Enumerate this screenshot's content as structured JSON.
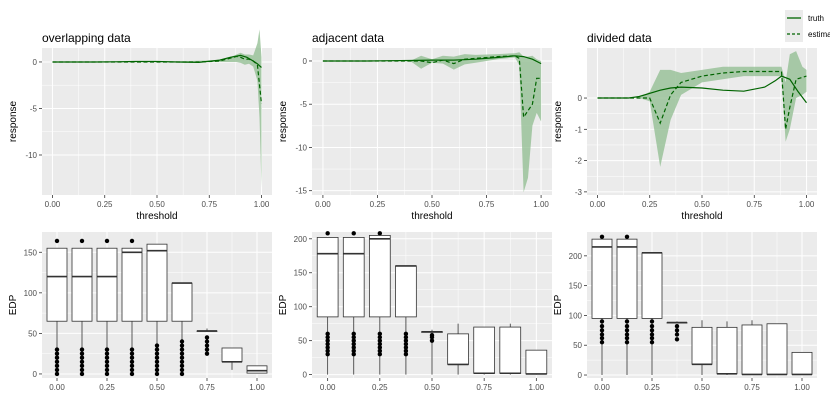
{
  "legend": {
    "truth": "truth",
    "estimate": "estimate"
  },
  "colors": {
    "panel": "#ebebeb",
    "grid": "#ffffff",
    "line": "#006400",
    "band": "#8fbc8f"
  },
  "chart_data": [
    {
      "type": "line",
      "title": "overlapping data",
      "xlabel": "threshold",
      "ylabel": "response",
      "xlim": [
        -0.05,
        1.05
      ],
      "ylim": [
        -14.3,
        1.5
      ],
      "xticks": [
        0,
        0.25,
        0.5,
        0.75,
        1
      ],
      "xtick_labels": [
        "0.00",
        "0.25",
        "0.50",
        "0.75",
        "1.00"
      ],
      "yticks": [
        0,
        -5,
        -10
      ],
      "ytick_labels": [
        "0",
        "-5",
        "-10"
      ],
      "truth": {
        "x": [
          0,
          0.1,
          0.2,
          0.3,
          0.4,
          0.5,
          0.6,
          0.7,
          0.8,
          0.85,
          0.9,
          0.93,
          0.96,
          0.98,
          1.0
        ],
        "y": [
          0,
          0,
          0,
          0.02,
          0.05,
          0.05,
          0.0,
          -0.05,
          0.2,
          0.5,
          0.7,
          0.5,
          0.1,
          -0.2,
          -0.6
        ]
      },
      "estimate": {
        "x": [
          0,
          0.1,
          0.2,
          0.3,
          0.4,
          0.5,
          0.6,
          0.7,
          0.8,
          0.85,
          0.88,
          0.9,
          0.92,
          0.94,
          0.96,
          0.98,
          1.0
        ],
        "y": [
          0,
          0,
          0,
          0,
          0,
          0,
          0,
          0,
          0.1,
          0.4,
          0.6,
          0.5,
          0.3,
          0.3,
          0.1,
          -0.3,
          -4.5
        ]
      },
      "band": {
        "x": [
          0,
          0.5,
          0.8,
          0.85,
          0.88,
          0.9,
          0.92,
          0.94,
          0.96,
          0.98,
          0.99,
          1.0
        ],
        "lo": [
          0,
          0,
          0,
          0,
          0,
          -0.1,
          -0.3,
          -0.2,
          -0.5,
          -2.0,
          -6,
          -13.5
        ],
        "hi": [
          0,
          0,
          0.2,
          0.5,
          0.8,
          1.0,
          0.8,
          0.8,
          0.7,
          2,
          3.5,
          0.5
        ]
      }
    },
    {
      "type": "line",
      "title": "adjacent data",
      "xlabel": "threshold",
      "ylabel": "response",
      "xlim": [
        -0.05,
        1.05
      ],
      "ylim": [
        -15.5,
        1.5
      ],
      "xticks": [
        0,
        0.25,
        0.5,
        0.75,
        1
      ],
      "xtick_labels": [
        "0.00",
        "0.25",
        "0.50",
        "0.75",
        "1.00"
      ],
      "yticks": [
        0,
        -5,
        -10,
        -15
      ],
      "ytick_labels": [
        "0",
        "-5",
        "-10",
        "-15"
      ],
      "truth": {
        "x": [
          0,
          0.2,
          0.4,
          0.5,
          0.6,
          0.7,
          0.8,
          0.88,
          0.92,
          0.96,
          1.0
        ],
        "y": [
          0,
          0,
          0.05,
          0.1,
          0.1,
          0.2,
          0.4,
          0.6,
          0.5,
          0.2,
          -0.3
        ]
      },
      "estimate": {
        "x": [
          0,
          0.3,
          0.45,
          0.5,
          0.55,
          0.6,
          0.65,
          0.7,
          0.8,
          0.88,
          0.9,
          0.92,
          0.96,
          0.98,
          1.0
        ],
        "y": [
          0,
          0,
          0,
          -0.2,
          0.1,
          -0.3,
          0.2,
          0.3,
          0.5,
          0.6,
          0.3,
          -6.5,
          -5,
          -2,
          -2
        ]
      },
      "band": {
        "x": [
          0,
          0.4,
          0.45,
          0.5,
          0.55,
          0.6,
          0.65,
          0.7,
          0.8,
          0.88,
          0.9,
          0.92,
          0.94,
          0.96,
          0.98,
          1.0
        ],
        "lo": [
          0,
          0,
          -0.9,
          -0.2,
          -0.3,
          -1.0,
          -0.4,
          -0.2,
          0.2,
          0.4,
          -0.5,
          -15.2,
          -13.5,
          -7.5,
          -6.0,
          -7.0
        ],
        "hi": [
          0,
          0,
          0.6,
          0.2,
          0.6,
          0.5,
          0.8,
          0.7,
          0.8,
          0.9,
          1.0,
          0.5,
          0.5,
          0.6,
          0.2,
          0
        ]
      }
    },
    {
      "type": "line",
      "title": "divided data",
      "xlabel": "threshold",
      "ylabel": "response",
      "xlim": [
        -0.05,
        1.05
      ],
      "ylim": [
        -3.1,
        1.6
      ],
      "xticks": [
        0,
        0.25,
        0.5,
        0.75,
        1
      ],
      "xtick_labels": [
        "0.00",
        "0.25",
        "0.50",
        "0.75",
        "1.00"
      ],
      "yticks": [
        0,
        -1,
        -2,
        -3
      ],
      "ytick_labels": [
        "0",
        "-1",
        "-2",
        "-3"
      ],
      "truth": {
        "x": [
          0,
          0.1,
          0.15,
          0.2,
          0.3,
          0.35,
          0.4,
          0.5,
          0.6,
          0.7,
          0.8,
          0.85,
          0.88,
          0.92,
          0.96,
          1.0
        ],
        "y": [
          0,
          0,
          0,
          0.05,
          0.25,
          0.32,
          0.35,
          0.32,
          0.25,
          0.22,
          0.35,
          0.55,
          0.7,
          0.6,
          0.2,
          -0.15
        ]
      },
      "estimate": {
        "x": [
          0,
          0.1,
          0.2,
          0.25,
          0.3,
          0.35,
          0.4,
          0.5,
          0.6,
          0.7,
          0.88,
          0.9,
          0.92,
          0.95,
          1.0
        ],
        "y": [
          0,
          0,
          0,
          0,
          -0.8,
          0.1,
          0.5,
          0.7,
          0.8,
          0.85,
          0.85,
          -1.0,
          -0.3,
          0.6,
          0.7
        ]
      },
      "band": {
        "x": [
          0,
          0.2,
          0.25,
          0.3,
          0.35,
          0.4,
          0.5,
          0.6,
          0.7,
          0.88,
          0.9,
          0.92,
          0.95,
          0.98,
          1.0
        ],
        "lo": [
          0,
          0,
          -0.1,
          -2.2,
          -0.7,
          0.1,
          0.5,
          0.6,
          0.7,
          0.7,
          -1.4,
          -1.0,
          0.0,
          0.1,
          0.2
        ],
        "hi": [
          0,
          0,
          0.2,
          0.9,
          0.9,
          0.8,
          0.9,
          1.0,
          1.0,
          1.0,
          0.5,
          1.4,
          1.5,
          1.0,
          0.9
        ]
      }
    },
    {
      "type": "boxplot",
      "ylabel": "EDP",
      "xlim": [
        -0.075,
        1.075
      ],
      "ylim": [
        -5,
        175
      ],
      "xticks": [
        0,
        0.25,
        0.5,
        0.75,
        1
      ],
      "xtick_labels": [
        "0.00",
        "0.25",
        "0.50",
        "0.75",
        "1.00"
      ],
      "yticks": [
        0,
        50,
        100,
        150
      ],
      "ytick_labels": [
        "0",
        "50",
        "100",
        "150"
      ],
      "boxes": [
        {
          "x": 0,
          "lo": 0,
          "q1": 65,
          "med": 120,
          "q3": 155,
          "hi": 155,
          "out": [
            164,
            0,
            5,
            10,
            15,
            20,
            25,
            30
          ]
        },
        {
          "x": 0.125,
          "lo": 0,
          "q1": 65,
          "med": 120,
          "q3": 155,
          "hi": 155,
          "out": [
            164,
            0,
            5,
            10,
            15,
            20,
            25,
            30
          ]
        },
        {
          "x": 0.25,
          "lo": 0,
          "q1": 65,
          "med": 120,
          "q3": 155,
          "hi": 155,
          "out": [
            164,
            0,
            5,
            10,
            15,
            20,
            25,
            30
          ]
        },
        {
          "x": 0.375,
          "lo": 0,
          "q1": 65,
          "med": 150,
          "q3": 155,
          "hi": 155,
          "out": [
            164,
            0,
            5,
            10,
            15,
            20,
            25,
            30
          ]
        },
        {
          "x": 0.5,
          "lo": 0,
          "q1": 65,
          "med": 152,
          "q3": 160,
          "hi": 160,
          "out": [
            0,
            5,
            10,
            15,
            20,
            25,
            30,
            35
          ]
        },
        {
          "x": 0.625,
          "lo": 0,
          "q1": 65,
          "med": 112,
          "q3": 112,
          "hi": 112,
          "out": [
            0,
            5,
            10,
            15,
            20,
            25,
            30,
            35,
            40
          ]
        },
        {
          "x": 0.75,
          "lo": 53,
          "q1": 53,
          "med": 53,
          "q3": 53,
          "hi": 56,
          "out": [
            25,
            30,
            35,
            40,
            45
          ]
        },
        {
          "x": 0.875,
          "lo": 5,
          "q1": 15,
          "med": 15,
          "q3": 32,
          "hi": 32,
          "out": []
        },
        {
          "x": 1.0,
          "lo": 1,
          "q1": 1,
          "med": 4,
          "q3": 10,
          "hi": 10,
          "out": []
        }
      ]
    },
    {
      "type": "boxplot",
      "ylabel": "EDP",
      "xlim": [
        -0.075,
        1.075
      ],
      "ylim": [
        -5,
        210
      ],
      "xticks": [
        0,
        0.25,
        0.5,
        0.75,
        1
      ],
      "xtick_labels": [
        "0.00",
        "0.25",
        "0.50",
        "0.75",
        "1.00"
      ],
      "yticks": [
        0,
        50,
        100,
        150,
        200
      ],
      "ytick_labels": [
        "0",
        "50",
        "100",
        "150",
        "200"
      ],
      "boxes": [
        {
          "x": 0,
          "lo": 0,
          "q1": 85,
          "med": 178,
          "q3": 202,
          "hi": 202,
          "out": [
            208,
            30,
            35,
            40,
            45,
            50,
            55,
            60
          ]
        },
        {
          "x": 0.125,
          "lo": 0,
          "q1": 85,
          "med": 178,
          "q3": 202,
          "hi": 202,
          "out": [
            208,
            30,
            35,
            40,
            45,
            50,
            55,
            60
          ]
        },
        {
          "x": 0.25,
          "lo": 0,
          "q1": 85,
          "med": 200,
          "q3": 205,
          "hi": 205,
          "out": [
            208,
            30,
            35,
            40,
            45,
            50,
            55,
            60
          ]
        },
        {
          "x": 0.375,
          "lo": 0,
          "q1": 85,
          "med": 160,
          "q3": 160,
          "hi": 160,
          "out": [
            30,
            35,
            40,
            45,
            50,
            55,
            60
          ]
        },
        {
          "x": 0.5,
          "lo": 0,
          "q1": 63,
          "med": 63,
          "q3": 63,
          "hi": 66,
          "out": [
            50,
            55,
            58
          ]
        },
        {
          "x": 0.625,
          "lo": 0,
          "q1": 15,
          "med": 15,
          "q3": 60,
          "hi": 75,
          "out": []
        },
        {
          "x": 0.75,
          "lo": 0,
          "q1": 2,
          "med": 2,
          "q3": 70,
          "hi": 70,
          "out": []
        },
        {
          "x": 0.875,
          "lo": 0,
          "q1": 2,
          "med": 2,
          "q3": 70,
          "hi": 75,
          "out": []
        },
        {
          "x": 1.0,
          "lo": 0,
          "q1": 1,
          "med": 1,
          "q3": 36,
          "hi": 36,
          "out": []
        }
      ]
    },
    {
      "type": "boxplot",
      "ylabel": "EDP",
      "xlim": [
        -0.075,
        1.075
      ],
      "ylim": [
        -5,
        240
      ],
      "xticks": [
        0,
        0.25,
        0.5,
        0.75,
        1
      ],
      "xtick_labels": [
        "0.00",
        "0.25",
        "0.50",
        "0.75",
        "1.00"
      ],
      "yticks": [
        0,
        50,
        100,
        150,
        200
      ],
      "ytick_labels": [
        "0",
        "50",
        "100",
        "150",
        "200"
      ],
      "boxes": [
        {
          "x": 0,
          "lo": 0,
          "q1": 95,
          "med": 215,
          "q3": 228,
          "hi": 228,
          "out": [
            232,
            55,
            62,
            68,
            75,
            82,
            90
          ]
        },
        {
          "x": 0.125,
          "lo": 0,
          "q1": 95,
          "med": 215,
          "q3": 228,
          "hi": 228,
          "out": [
            232,
            55,
            62,
            68,
            75,
            82,
            90
          ]
        },
        {
          "x": 0.25,
          "lo": 0,
          "q1": 95,
          "med": 205,
          "q3": 205,
          "hi": 205,
          "out": [
            55,
            62,
            68,
            75,
            82,
            90
          ]
        },
        {
          "x": 0.375,
          "lo": 88,
          "q1": 88,
          "med": 88,
          "q3": 88,
          "hi": 90,
          "out": [
            60,
            68,
            75,
            82
          ]
        },
        {
          "x": 0.5,
          "lo": 0,
          "q1": 18,
          "med": 18,
          "q3": 80,
          "hi": 92,
          "out": []
        },
        {
          "x": 0.625,
          "lo": 0,
          "q1": 2,
          "med": 2,
          "q3": 80,
          "hi": 90,
          "out": []
        },
        {
          "x": 0.75,
          "lo": 0,
          "q1": 1,
          "med": 1,
          "q3": 84,
          "hi": 92,
          "out": []
        },
        {
          "x": 0.875,
          "lo": 0,
          "q1": 1,
          "med": 1,
          "q3": 86,
          "hi": 86,
          "out": []
        },
        {
          "x": 1.0,
          "lo": 0,
          "q1": 1,
          "med": 1,
          "q3": 38,
          "hi": 38,
          "out": []
        }
      ]
    }
  ]
}
